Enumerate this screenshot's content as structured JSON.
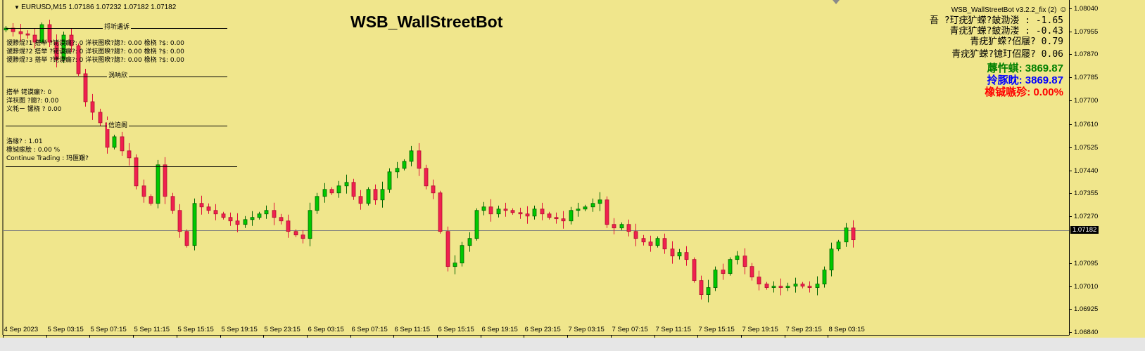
{
  "header": {
    "symbol_line": "EURUSD,M15  1.07186 1.07232 1.07182 1.07182",
    "title": "WSB_WallStreetBot",
    "indicator_label": "WSB_WallStreetBot v3.2.2_fix (2)",
    "smiley_icon": "smiley-face-icon"
  },
  "left_panel": {
    "section1_title": "捋圻遇诉",
    "rows": [
      "谡黪焜?1 搭举  ?铑谟瘺?:  0    洋祆图睽?牕?:  0.00    橡桡   ?$:  0.00",
      "谡黪焜?2 搭举   ?铑谟瘺?:  0    洋祆图睽?牕?:  0.00    橡桡   ?$:  0.00",
      "谡黪焜?3 搭举   ?铑谟瘺?:  0    洋祆图睽?牕?:  0.00    橡桡   ?$:  0.00"
    ],
    "section2_title": "涡呐欣",
    "summary_rows": [
      "搭举      铑谟瘺?:   0",
      "洋祆图   ?牕?:   0.00",
      "义牦ㄧ    镙桡   ?  0.00"
    ],
    "section3_title": "信迫阁",
    "status_rows": [
      "洛緣? :    1.01",
      "橡铖瘃脍 :   0.00 %",
      "Continue Trading :   玛匯艱?"
    ]
  },
  "right_panel": {
    "lines": [
      "吾    ?玎疣犷蝾?鈹泐溇    : -1.65",
      "青疣犷蝾?鈹泐溇    : -0.43",
      "青疣犷蝾?佋屦? 0.79",
      "青疣犷蝾?镱玎佋屦? 0.06"
    ],
    "balance": "蓐忤蜞: 3869.87",
    "equity": "拎豚眈: 3869.87",
    "profit": "橡铖嗾殄: 0.00%",
    "colors": {
      "balance": "#008000",
      "equity": "#0000FF",
      "profit": "#FF0000"
    }
  },
  "chart_data": {
    "type": "candlestick",
    "symbol": "EURUSD",
    "timeframe": "M15",
    "current_price": "1.07182",
    "ylim": [
      1.0684,
      1.0804
    ],
    "y_ticks": [
      "1.08040",
      "1.07955",
      "1.07870",
      "1.07785",
      "1.07700",
      "1.07610",
      "1.07525",
      "1.07440",
      "1.07355",
      "1.07270",
      "1.07095",
      "1.07010",
      "1.06925",
      "1.06840"
    ],
    "x_ticks": [
      "4 Sep 2023",
      "5 Sep 03:15",
      "5 Sep 07:15",
      "5 Sep 11:15",
      "5 Sep 15:15",
      "5 Sep 19:15",
      "5 Sep 23:15",
      "6 Sep 03:15",
      "6 Sep 07:15",
      "6 Sep 11:15",
      "6 Sep 15:15",
      "6 Sep 19:15",
      "6 Sep 23:15",
      "7 Sep 03:15",
      "7 Sep 07:15",
      "7 Sep 11:15",
      "7 Sep 15:15",
      "7 Sep 19:15",
      "7 Sep 23:15",
      "8 Sep 03:15"
    ],
    "first_open": 1.0796,
    "approx_closes": [
      1.07967,
      1.07954,
      1.07946,
      1.07941,
      1.07915,
      1.0798,
      1.07915,
      1.0785,
      1.07941,
      1.07902,
      1.07798,
      1.07694,
      1.07655,
      1.07616,
      1.07525,
      1.07564,
      1.07512,
      1.07486,
      1.07382,
      1.07343,
      1.07317,
      1.0746,
      1.07343,
      1.07291,
      1.07213,
      1.07161,
      1.07317,
      1.07304,
      1.07291,
      1.07278,
      1.07265,
      1.07252,
      1.07239,
      1.07257,
      1.07265,
      1.07278,
      1.07291,
      1.07265,
      1.07252,
      1.07213,
      1.072,
      1.07187,
      1.07291,
      1.07343,
      1.07369,
      1.07356,
      1.07382,
      1.07395,
      1.07343,
      1.07317,
      1.07369,
      1.0733,
      1.07369,
      1.07434,
      1.07447,
      1.07473,
      1.07512,
      1.07447,
      1.07382,
      1.07356,
      1.07213,
      1.07083,
      1.07096,
      1.07161,
      1.07187,
      1.07291,
      1.07304,
      1.07278,
      1.07296,
      1.07291,
      1.07283,
      1.07278,
      1.0727,
      1.07296,
      1.07278,
      1.07265,
      1.0726,
      1.07252,
      1.07291,
      1.07296,
      1.07304,
      1.07317,
      1.0733,
      1.07239,
      1.07226,
      1.07239,
      1.07213,
      1.07187,
      1.07174,
      1.07161,
      1.07187,
      1.07148,
      1.07122,
      1.07135,
      1.07109,
      1.07031,
      1.06979,
      1.07005,
      1.0707,
      1.07057,
      1.07109,
      1.07122,
      1.07083,
      1.07044,
      1.07018,
      1.07005,
      1.0701,
      1.07005,
      1.0701,
      1.07018,
      1.0701,
      1.07005,
      1.07018,
      1.0707,
      1.07148,
      1.07174,
      1.07226,
      1.07182
    ],
    "colors": {
      "bull": "#00C800",
      "bear": "#F0204F",
      "background": "#F0E68C"
    }
  }
}
